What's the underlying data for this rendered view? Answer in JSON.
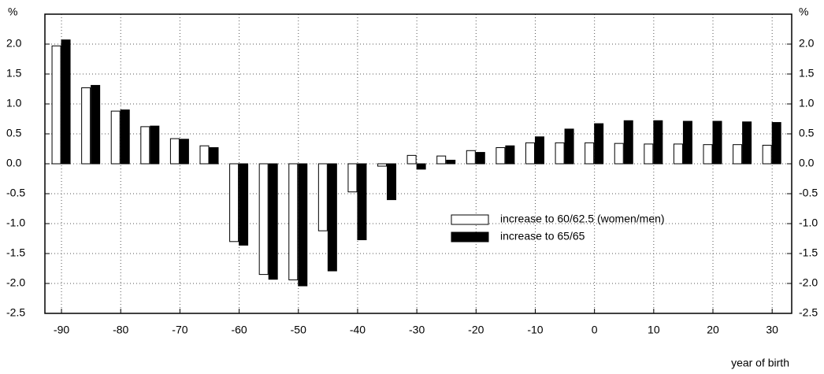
{
  "chart_data": {
    "type": "bar",
    "y_label": "%",
    "x_label": "year of birth",
    "x": [
      -90,
      -85,
      -80,
      -75,
      -70,
      -65,
      -60,
      -55,
      -50,
      -45,
      -40,
      -35,
      -30,
      -25,
      -20,
      -15,
      -10,
      -5,
      0,
      5,
      10,
      15,
      20,
      25,
      30
    ],
    "series": [
      {
        "name": "increase to 60/62.5 (women/men)",
        "color": "#ffffff",
        "values": [
          1.97,
          1.27,
          0.88,
          0.62,
          0.42,
          0.3,
          -1.3,
          -1.85,
          -1.94,
          -1.12,
          -0.47,
          -0.04,
          0.14,
          0.13,
          0.22,
          0.27,
          0.35,
          0.35,
          0.35,
          0.34,
          0.33,
          0.33,
          0.32,
          0.32,
          0.31
        ]
      },
      {
        "name": "increase to 65/65",
        "color": "#000000",
        "values": [
          2.07,
          1.31,
          0.9,
          0.63,
          0.41,
          0.27,
          -1.36,
          -1.93,
          -2.04,
          -1.79,
          -1.27,
          -0.6,
          -0.09,
          0.06,
          0.19,
          0.3,
          0.45,
          0.58,
          0.67,
          0.72,
          0.72,
          0.71,
          0.71,
          0.7,
          0.69
        ]
      }
    ],
    "xlim": [
      -92.8,
      33.3
    ],
    "xticks": [
      -90,
      -80,
      -70,
      -60,
      -50,
      -40,
      -30,
      -20,
      -10,
      0,
      10,
      20,
      30
    ],
    "ylim": [
      -2.5,
      2.5
    ],
    "yticks": [
      -2.5,
      {
        "value": -2.0,
        "label": "-2.0"
      },
      -1.5,
      {
        "value": -1.0,
        "label": "-1.0"
      },
      -0.5,
      {
        "value": 0.0,
        "label": "0.0"
      },
      0.5,
      {
        "value": 1.0,
        "label": "1.0"
      },
      1.5,
      {
        "value": 2.0,
        "label": "2.0"
      }
    ],
    "grid": true,
    "legend": "center-right"
  }
}
